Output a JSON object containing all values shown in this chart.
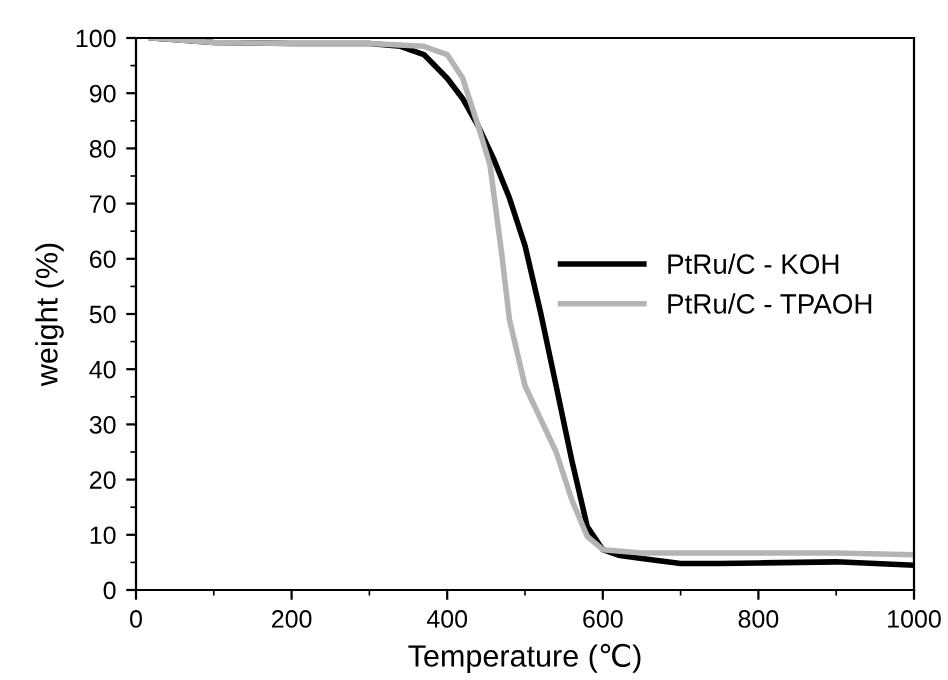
{
  "chart_data": {
    "type": "line",
    "xlabel": "Temperature (℃)",
    "ylabel": "weight (%)",
    "xlim": [
      0,
      1000
    ],
    "xticks": [
      0,
      200,
      400,
      600,
      800,
      1000
    ],
    "ylim": [
      0,
      100
    ],
    "yticks": [
      0,
      10,
      20,
      30,
      40,
      50,
      60,
      70,
      80,
      90,
      100
    ],
    "grid": false,
    "legend": "center right",
    "marker": "none",
    "line_style": "solid",
    "series": [
      {
        "name": "PtRu/C - KOH",
        "color": "#000000",
        "x": [
          20,
          100,
          200,
          300,
          340,
          370,
          400,
          420,
          440,
          460,
          480,
          500,
          520,
          540,
          560,
          580,
          600,
          620,
          650,
          700,
          750,
          800,
          900,
          1000
        ],
        "values": [
          100,
          99.2,
          99,
          99,
          98.5,
          97,
          92.7,
          89,
          84,
          78,
          71,
          62.4,
          50.3,
          37,
          23.6,
          11.5,
          7.3,
          6.3,
          5.7,
          4.8,
          4.8,
          4.9,
          5.1,
          4.5
        ]
      },
      {
        "name": "PtRu/C - TPAOH",
        "color": "#b4b4b4",
        "x": [
          20,
          100,
          200,
          300,
          370,
          400,
          420,
          440,
          455,
          470,
          480,
          500,
          520,
          540,
          560,
          580,
          600,
          650,
          700,
          800,
          900,
          1000
        ],
        "values": [
          100,
          99.2,
          99,
          99,
          98.5,
          97,
          92.7,
          84,
          77,
          61,
          49,
          37,
          31,
          25,
          16.4,
          9.7,
          7.3,
          6.7,
          6.7,
          6.7,
          6.7,
          6.4
        ]
      }
    ]
  }
}
